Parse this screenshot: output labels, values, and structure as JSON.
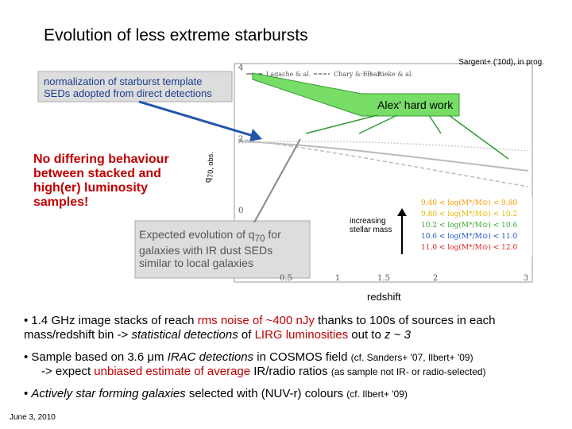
{
  "title": "Evolution of less extreme starbursts",
  "credit": "Sargent+ ('10d), in prog.",
  "callouts": {
    "normalization": "normalization of starburst template SEDs adopted from direct detections",
    "alex": "Alex' hard work",
    "no_differing": "No differing behaviour between stacked and high(er) luminosity samples!",
    "expected": [
      {
        "text": "Expected evolution of q"
      },
      {
        "text": "70",
        "sub": true
      },
      {
        "text": " for galaxies with IR dust SEDs similar to local galaxies"
      }
    ]
  },
  "plot": {
    "y_label": [
      {
        "text": "q"
      },
      {
        "text": "70, obs.",
        "sub": true
      }
    ],
    "x_label": "redshift",
    "y_ticks": [
      "4",
      "2",
      "0"
    ],
    "x_ticks": [
      "0.5",
      "1",
      "1.5",
      "2",
      "3"
    ],
    "legend": [
      "Lagache & al.",
      "Chary & Elbaz",
      "Rieke & al."
    ],
    "mass_note": "increasing stellar mass",
    "mass_bins": [
      {
        "label": "9.40 < log(M*/M⊙) < 9.80",
        "color": "#ff9900"
      },
      {
        "label": "9.80 < log(M*/M⊙) < 10.2",
        "color": "#e6b800"
      },
      {
        "label": "10.2 < log(M*/M⊙) < 10.6",
        "color": "#33aa33"
      },
      {
        "label": "10.6 < log(M*/M⊙) < 11.0",
        "color": "#2255cc"
      },
      {
        "label": "11.0 < log(M*/M⊙) < 12.0",
        "color": "#dd2222"
      }
    ]
  },
  "bullets": [
    [
      [
        {
          "text": "• 1.4 GHz image stacks of reach "
        },
        {
          "text": "rms noise of ~400 nJy",
          "style": "red"
        },
        {
          "text": " thanks to 100s of sources in each mass/redshift bin -> "
        },
        {
          "text": "statistical detections",
          "style": "italic"
        },
        {
          "text": " of "
        },
        {
          "text": "LIRG luminosities",
          "style": "red"
        },
        {
          "text": " out to "
        },
        {
          "text": "z ~ 3",
          "style": "italic"
        }
      ]
    ],
    [
      [
        {
          "text": "• Sample based on 3.6 μm "
        },
        {
          "text": "IRAC detections",
          "style": "italic"
        },
        {
          "text": " in COSMOS field "
        },
        {
          "text": "(cf. Sanders+ '07, Ilbert+ '09)",
          "style": "small"
        }
      ],
      [
        {
          "text": "-> expect "
        },
        {
          "text": "unbiased estimate of average",
          "style": "red"
        },
        {
          "text": " IR/radio ratios "
        },
        {
          "text": "(as sample not IR- or radio-selected)",
          "style": "small"
        }
      ]
    ],
    [
      [
        {
          "text": "• "
        },
        {
          "text": "Actively star forming galaxies",
          "style": "italic"
        },
        {
          "text": " selected with (NUV-r) colours "
        },
        {
          "text": "(cf. Ilbert+ '09)",
          "style": "small"
        }
      ]
    ]
  ],
  "date": "June 3, 2010"
}
